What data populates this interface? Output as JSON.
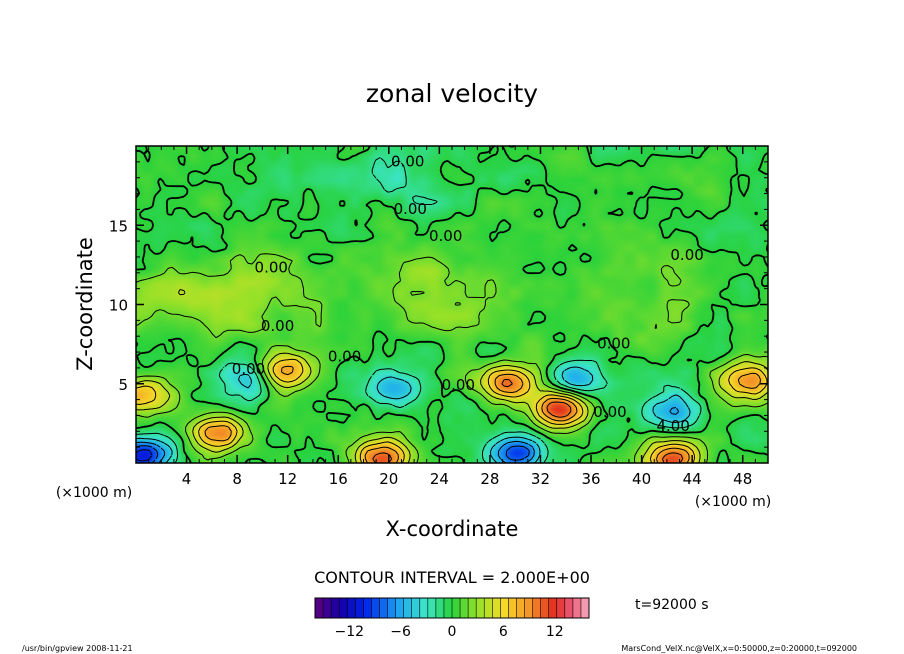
{
  "chart_data": {
    "type": "heatmap",
    "title": "zonal velocity",
    "xlabel": "X-coordinate",
    "ylabel": "Z-coordinate",
    "x_unit_left": "(×1000 m)",
    "x_unit_right": "(×1000 m)",
    "xlim": [
      0,
      50
    ],
    "ylim": [
      0,
      20
    ],
    "x_ticks": [
      4,
      8,
      12,
      16,
      20,
      24,
      28,
      32,
      36,
      40,
      44,
      48
    ],
    "y_ticks": [
      5,
      10,
      15
    ],
    "contour_interval_text": "CONTOUR INTERVAL = 2.000E+00",
    "time_text": "t=92000 s",
    "colorbar": {
      "range": [
        -16,
        16
      ],
      "ticks": [
        -12,
        -6,
        0,
        6,
        12
      ],
      "tick_labels": [
        "−12",
        "−6",
        "0",
        "6",
        "12"
      ]
    },
    "contour_labels": [
      {
        "text": "0.00",
        "x": 21.5,
        "z": 19.0
      },
      {
        "text": "0.00",
        "x": 21.7,
        "z": 16.0
      },
      {
        "text": "0.00",
        "x": 24.5,
        "z": 14.3
      },
      {
        "text": "0.00",
        "x": 10.7,
        "z": 12.3
      },
      {
        "text": "0.00",
        "x": 43.6,
        "z": 13.1
      },
      {
        "text": "0.00",
        "x": 11.2,
        "z": 8.6
      },
      {
        "text": "0.00",
        "x": 16.5,
        "z": 6.7
      },
      {
        "text": "0.00",
        "x": 8.9,
        "z": 5.9
      },
      {
        "text": "0.00",
        "x": 25.5,
        "z": 4.9
      },
      {
        "text": "0.00",
        "x": 37.8,
        "z": 7.5
      },
      {
        "text": "0.00",
        "x": 37.5,
        "z": 3.2
      },
      {
        "text": "4.00",
        "x": 42.5,
        "z": 2.3
      }
    ],
    "extrema": [
      {
        "x": 20.5,
        "z": 4.6,
        "value": -6
      },
      {
        "x": 9.0,
        "z": 5.3,
        "value": -6
      },
      {
        "x": 42.5,
        "z": 3.3,
        "value": -6
      },
      {
        "x": 35.2,
        "z": 5.3,
        "value": -6
      },
      {
        "x": 30.0,
        "z": 0.6,
        "value": -10
      },
      {
        "x": 0.6,
        "z": 0.5,
        "value": -10
      },
      {
        "x": 29.5,
        "z": 5.0,
        "value": 10
      },
      {
        "x": 33.5,
        "z": 3.4,
        "value": 12
      },
      {
        "x": 11.7,
        "z": 5.8,
        "value": 10
      },
      {
        "x": 6.5,
        "z": 1.9,
        "value": 10
      },
      {
        "x": 19.5,
        "z": 0.3,
        "value": 12
      },
      {
        "x": 42.5,
        "z": 0.3,
        "value": 12
      },
      {
        "x": 48.5,
        "z": 5.2,
        "value": 10
      },
      {
        "x": 0.4,
        "z": 4.3,
        "value": 8
      },
      {
        "x": 10.0,
        "z": 12.0,
        "value": 2
      },
      {
        "x": 24.0,
        "z": 12.0,
        "value": 2
      },
      {
        "x": 40.0,
        "z": 12.5,
        "value": 2
      },
      {
        "x": 10.0,
        "z": 9.0,
        "value": 2
      },
      {
        "x": 25.0,
        "z": 9.0,
        "value": 2
      },
      {
        "x": 40.0,
        "z": 9.0,
        "value": 2
      },
      {
        "x": 3.0,
        "z": 10.5,
        "value": 3
      },
      {
        "x": 20.0,
        "z": 17.5,
        "value": -2
      }
    ]
  },
  "footer": {
    "left": "/usr/bin/gpview   2008-11-21",
    "right": "MarsCond_VelX.nc@VelX,x=0:50000,z=0:20000,t=092000"
  }
}
